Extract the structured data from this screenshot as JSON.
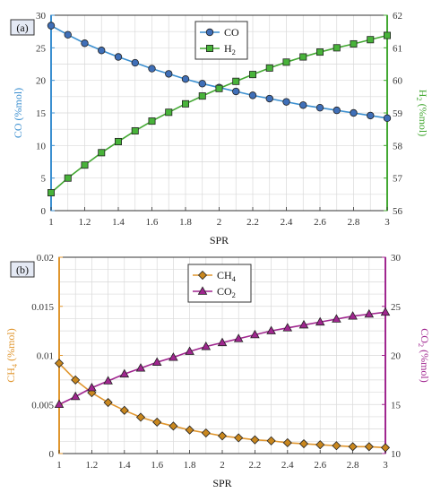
{
  "chart_data": [
    {
      "type": "line",
      "panel_label": "(a)",
      "xlabel": "SPR",
      "ylabel_left": {
        "main": "CO",
        "unit": " (%mol)"
      },
      "ylabel_right": {
        "main": "H",
        "sub": "2",
        "unit": " (%mol)"
      },
      "xlim": [
        1,
        3
      ],
      "ylim_left": [
        0,
        30
      ],
      "ylim_right": [
        56,
        62
      ],
      "x_ticks": [
        "1",
        "1.2",
        "1.4",
        "1.6",
        "1.8",
        "2",
        "2.2",
        "2.4",
        "2.6",
        "2.8",
        "3"
      ],
      "y_left_ticks": [
        "0",
        "5",
        "10",
        "15",
        "20",
        "25",
        "30"
      ],
      "y_right_ticks": [
        "56",
        "57",
        "58",
        "59",
        "60",
        "61",
        "62"
      ],
      "grid": true,
      "legend_placement": "top-center",
      "x": [
        1,
        1.1,
        1.2,
        1.3,
        1.4,
        1.5,
        1.6,
        1.7,
        1.8,
        1.9,
        2,
        2.1,
        2.2,
        2.3,
        2.4,
        2.5,
        2.6,
        2.7,
        2.8,
        2.9,
        3
      ],
      "series": [
        {
          "name": "CO",
          "name_sub": "",
          "axis": "left",
          "marker": "circle",
          "color": "#3b8fd0",
          "marker_fill": "#3f6fb8",
          "values": [
            28.4,
            27.0,
            25.7,
            24.6,
            23.6,
            22.7,
            21.8,
            21.0,
            20.2,
            19.5,
            18.9,
            18.3,
            17.7,
            17.2,
            16.7,
            16.2,
            15.8,
            15.4,
            15.0,
            14.6,
            14.2
          ]
        },
        {
          "name": "H",
          "name_sub": "2",
          "axis": "right",
          "marker": "square",
          "color": "#43a832",
          "marker_fill": "#48b33a",
          "values": [
            56.55,
            57.0,
            57.4,
            57.78,
            58.12,
            58.45,
            58.75,
            59.02,
            59.28,
            59.52,
            59.75,
            59.97,
            60.18,
            60.38,
            60.56,
            60.72,
            60.87,
            61.0,
            61.12,
            61.25,
            61.38
          ]
        }
      ],
      "colors": {
        "left_axis": "#3b8fd0",
        "right_axis": "#43a832"
      }
    },
    {
      "type": "line",
      "panel_label": "(b)",
      "xlabel": "SPR",
      "ylabel_left": {
        "main": "CH",
        "sub": "4",
        "unit": " (%mol)"
      },
      "ylabel_right": {
        "main": "CO",
        "sub": "2",
        "unit": " (%mol)"
      },
      "xlim": [
        1,
        3
      ],
      "ylim_left": [
        0,
        0.02
      ],
      "ylim_right": [
        10,
        30
      ],
      "x_ticks": [
        "1",
        "1.2",
        "1.4",
        "1.6",
        "1.8",
        "2",
        "2.2",
        "2.4",
        "2.6",
        "2.8",
        "3"
      ],
      "y_left_ticks": [
        "0",
        "0.005",
        "0.01",
        "0.015",
        "0.02"
      ],
      "y_right_ticks": [
        "10",
        "15",
        "20",
        "25",
        "30"
      ],
      "grid": true,
      "legend_placement": "top-center",
      "x": [
        1,
        1.1,
        1.2,
        1.3,
        1.4,
        1.5,
        1.6,
        1.7,
        1.8,
        1.9,
        2,
        2.1,
        2.2,
        2.3,
        2.4,
        2.5,
        2.6,
        2.7,
        2.8,
        2.9,
        3
      ],
      "series": [
        {
          "name": "CH",
          "name_sub": "4",
          "axis": "left",
          "marker": "diamond",
          "color": "#e0962e",
          "marker_fill": "#c9871e",
          "values": [
            0.0092,
            0.0075,
            0.0062,
            0.0052,
            0.0044,
            0.0037,
            0.0032,
            0.0028,
            0.0024,
            0.0021,
            0.0018,
            0.0016,
            0.0014,
            0.0013,
            0.0011,
            0.001,
            0.0009,
            0.0008,
            0.0007,
            0.0007,
            0.0006
          ]
        },
        {
          "name": "CO",
          "name_sub": "2",
          "axis": "right",
          "marker": "triangle",
          "color": "#a0268f",
          "marker_fill": "#a0268f",
          "values": [
            15.0,
            15.8,
            16.7,
            17.4,
            18.1,
            18.7,
            19.3,
            19.8,
            20.4,
            20.9,
            21.3,
            21.7,
            22.1,
            22.5,
            22.8,
            23.1,
            23.4,
            23.7,
            24.0,
            24.2,
            24.4
          ]
        }
      ],
      "colors": {
        "left_axis": "#e0962e",
        "right_axis": "#a0268f"
      }
    }
  ]
}
